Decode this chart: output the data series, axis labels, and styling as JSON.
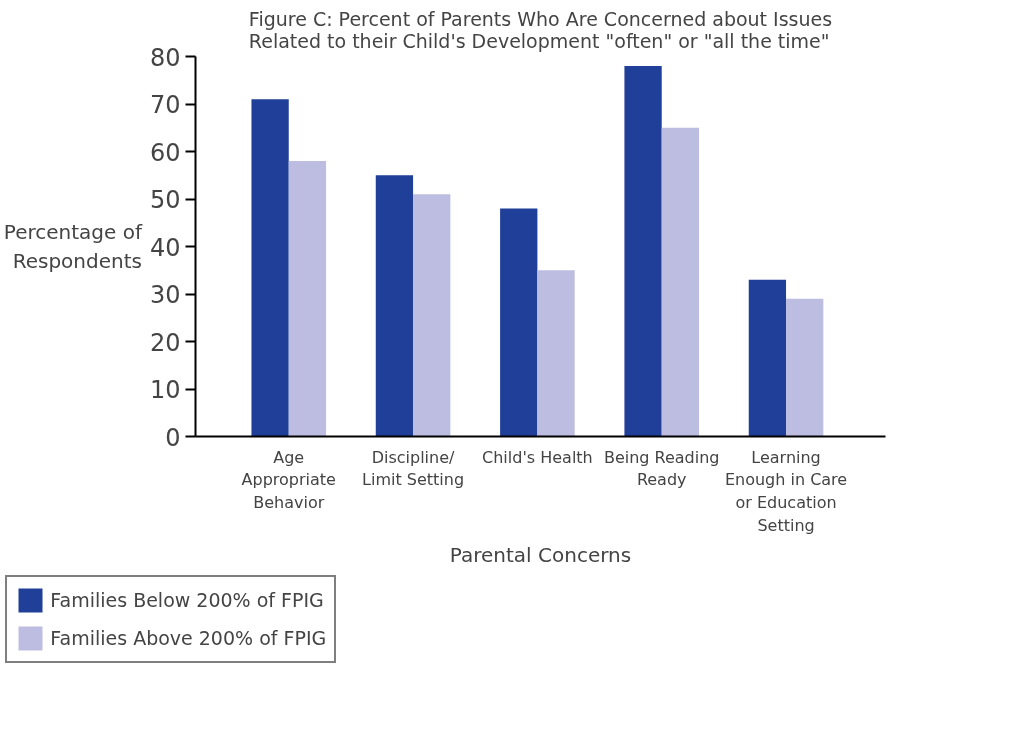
{
  "chart_data": {
    "type": "bar",
    "title": "Figure C: Percent of Parents Who Are Concerned about Issues Related to their Child's Development \"often\" or \"all the time\"",
    "xlabel": "Parental Concerns",
    "ylabel": "Percentage of Respondents",
    "categories": [
      "Age Appropriate Behavior",
      "Discipline/ Limit Setting",
      "Child's Health",
      "Being Reading Ready",
      "Learning Enough in Care or Education Setting"
    ],
    "series": [
      {
        "name": "Families Below 200% of FPIG",
        "color": "#1f3f99",
        "values": [
          71,
          55,
          48,
          78,
          33
        ]
      },
      {
        "name": "Families Above 200% of FPIG",
        "color": "#bcbde0",
        "values": [
          58,
          51,
          35,
          65,
          29
        ]
      }
    ],
    "ylim": [
      0,
      80
    ],
    "yticks": [
      0,
      10,
      20,
      30,
      40,
      50,
      60,
      70,
      80
    ],
    "grid": false,
    "legend": "bottom left"
  }
}
